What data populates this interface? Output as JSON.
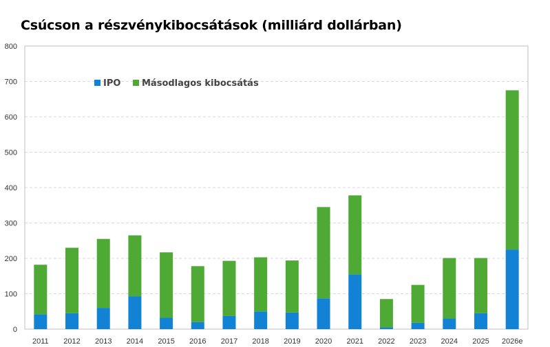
{
  "chart_data": {
    "type": "bar",
    "stacked": true,
    "title": "Csúcson a részvénykibocsátások (milliárd dollárban)",
    "categories": [
      "2011",
      "2012",
      "2013",
      "2014",
      "2015",
      "2016",
      "2017",
      "2018",
      "2019",
      "2020",
      "2021",
      "2022",
      "2023",
      "2024",
      "2025",
      "2026e"
    ],
    "series": [
      {
        "name": "IPO",
        "color": "#1283D4",
        "values": [
          42,
          45,
          60,
          93,
          32,
          20,
          37,
          50,
          47,
          87,
          155,
          5,
          18,
          30,
          45,
          225
        ]
      },
      {
        "name": "Másodlagos kibocsátás",
        "color": "#4EAA35",
        "values": [
          140,
          185,
          195,
          172,
          185,
          158,
          156,
          153,
          147,
          258,
          223,
          80,
          107,
          171,
          156,
          450
        ]
      }
    ],
    "ylim": [
      0,
      800
    ],
    "yticks": [
      0,
      100,
      200,
      300,
      400,
      500,
      600,
      700,
      800
    ],
    "grid": true,
    "legend_position": "top-left"
  }
}
